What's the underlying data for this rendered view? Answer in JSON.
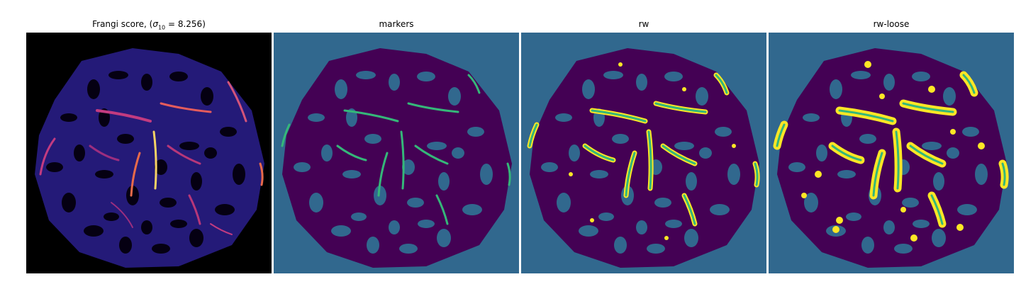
{
  "panels": [
    {
      "title_prefix": "Frangi score, (",
      "title_sigma": "σ",
      "title_sub": "10",
      "title_suffix": " = 8.256)"
    },
    {
      "title": "markers"
    },
    {
      "title": "rw"
    },
    {
      "title": "rw-loose"
    }
  ],
  "colors": {
    "frangi_background": "#000000",
    "frangi_low": "#2a0e7a",
    "frangi_high": "#f6d365",
    "label_background": "#31688e",
    "label_tissue": "#440154",
    "label_marker": "#35b779",
    "label_rw": "#fde725"
  }
}
